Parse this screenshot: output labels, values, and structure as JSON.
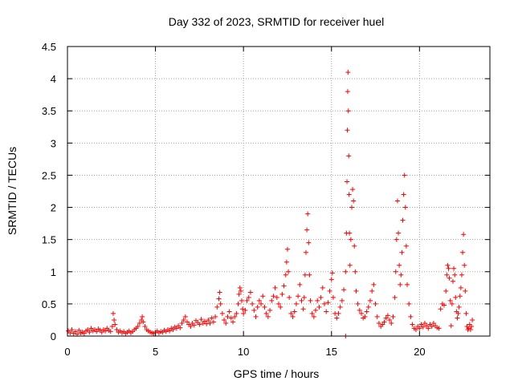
{
  "chart_data": {
    "type": "scatter",
    "title": "Day 332 of 2023, SRMTID for receiver huel",
    "xlabel": "GPS time / hours",
    "ylabel": "SRMTID / TECUs",
    "xlim": [
      0,
      24
    ],
    "ylim": [
      0,
      4.5
    ],
    "x_ticks": [
      0,
      5,
      10,
      15,
      20
    ],
    "x_tick_labels": [
      "0",
      "5",
      "10",
      "15",
      "20"
    ],
    "y_ticks": [
      0,
      0.5,
      1,
      1.5,
      2,
      2.5,
      3,
      3.5,
      4,
      4.5
    ],
    "y_tick_labels": [
      "0",
      "0.5",
      "1",
      "1.5",
      "2",
      "2.5",
      "3",
      "3.5",
      "4",
      "4.5"
    ],
    "grid": true,
    "marker": "+",
    "color": "#ff0000",
    "series": [
      {
        "name": "SRMTID",
        "points": [
          [
            0.05,
            0.08
          ],
          [
            0.15,
            0.05
          ],
          [
            0.25,
            0.1
          ],
          [
            0.35,
            0.04
          ],
          [
            0.45,
            0.07
          ],
          [
            0.55,
            0.03
          ],
          [
            0.65,
            0.09
          ],
          [
            0.75,
            0.05
          ],
          [
            0.85,
            0.06
          ],
          [
            0.95,
            0.04
          ],
          [
            1.05,
            0.08
          ],
          [
            1.15,
            0.1
          ],
          [
            1.25,
            0.06
          ],
          [
            1.35,
            0.12
          ],
          [
            1.45,
            0.08
          ],
          [
            1.55,
            0.1
          ],
          [
            1.65,
            0.07
          ],
          [
            1.75,
            0.11
          ],
          [
            1.85,
            0.09
          ],
          [
            1.95,
            0.06
          ],
          [
            2.05,
            0.1
          ],
          [
            2.15,
            0.08
          ],
          [
            2.25,
            0.12
          ],
          [
            2.35,
            0.09
          ],
          [
            2.45,
            0.07
          ],
          [
            2.55,
            0.15
          ],
          [
            2.6,
            0.35
          ],
          [
            2.65,
            0.25
          ],
          [
            2.7,
            0.18
          ],
          [
            2.8,
            0.1
          ],
          [
            2.9,
            0.06
          ],
          [
            3.0,
            0.08
          ],
          [
            3.1,
            0.05
          ],
          [
            3.2,
            0.07
          ],
          [
            3.3,
            0.04
          ],
          [
            3.4,
            0.06
          ],
          [
            3.5,
            0.08
          ],
          [
            3.6,
            0.05
          ],
          [
            3.7,
            0.07
          ],
          [
            3.8,
            0.1
          ],
          [
            3.9,
            0.12
          ],
          [
            4.0,
            0.15
          ],
          [
            4.1,
            0.2
          ],
          [
            4.2,
            0.25
          ],
          [
            4.25,
            0.3
          ],
          [
            4.3,
            0.22
          ],
          [
            4.4,
            0.15
          ],
          [
            4.5,
            0.1
          ],
          [
            4.6,
            0.08
          ],
          [
            4.7,
            0.06
          ],
          [
            4.8,
            0.05
          ],
          [
            4.9,
            0.04
          ],
          [
            5.0,
            0.06
          ],
          [
            5.1,
            0.08
          ],
          [
            5.2,
            0.05
          ],
          [
            5.3,
            0.07
          ],
          [
            5.4,
            0.06
          ],
          [
            5.5,
            0.09
          ],
          [
            5.6,
            0.07
          ],
          [
            5.7,
            0.1
          ],
          [
            5.8,
            0.08
          ],
          [
            5.9,
            0.12
          ],
          [
            6.0,
            0.1
          ],
          [
            6.1,
            0.14
          ],
          [
            6.2,
            0.12
          ],
          [
            6.3,
            0.16
          ],
          [
            6.4,
            0.13
          ],
          [
            6.5,
            0.2
          ],
          [
            6.6,
            0.25
          ],
          [
            6.7,
            0.3
          ],
          [
            6.8,
            0.22
          ],
          [
            6.9,
            0.18
          ],
          [
            7.0,
            0.15
          ],
          [
            7.1,
            0.2
          ],
          [
            7.2,
            0.17
          ],
          [
            7.3,
            0.24
          ],
          [
            7.4,
            0.21
          ],
          [
            7.5,
            0.18
          ],
          [
            7.6,
            0.26
          ],
          [
            7.7,
            0.2
          ],
          [
            7.8,
            0.23
          ],
          [
            7.9,
            0.19
          ],
          [
            8.0,
            0.25
          ],
          [
            8.1,
            0.2
          ],
          [
            8.2,
            0.28
          ],
          [
            8.3,
            0.22
          ],
          [
            8.4,
            0.3
          ],
          [
            8.5,
            0.45
          ],
          [
            8.6,
            0.58
          ],
          [
            8.65,
            0.68
          ],
          [
            8.7,
            0.5
          ],
          [
            8.8,
            0.35
          ],
          [
            8.9,
            0.25
          ],
          [
            9.0,
            0.2
          ],
          [
            9.1,
            0.3
          ],
          [
            9.2,
            0.38
          ],
          [
            9.3,
            0.28
          ],
          [
            9.4,
            0.22
          ],
          [
            9.5,
            0.3
          ],
          [
            9.6,
            0.35
          ],
          [
            9.7,
            0.5
          ],
          [
            9.75,
            0.65
          ],
          [
            9.8,
            0.75
          ],
          [
            9.85,
            0.7
          ],
          [
            9.9,
            0.55
          ],
          [
            9.95,
            0.42
          ],
          [
            10.0,
            0.35
          ],
          [
            10.1,
            0.4
          ],
          [
            10.2,
            0.55
          ],
          [
            10.3,
            0.6
          ],
          [
            10.4,
            0.68
          ],
          [
            10.5,
            0.5
          ],
          [
            10.6,
            0.4
          ],
          [
            10.7,
            0.3
          ],
          [
            10.8,
            0.45
          ],
          [
            10.9,
            0.55
          ],
          [
            11.0,
            0.5
          ],
          [
            11.1,
            0.62
          ],
          [
            11.2,
            0.45
          ],
          [
            11.3,
            0.35
          ],
          [
            11.4,
            0.3
          ],
          [
            11.5,
            0.4
          ],
          [
            11.6,
            0.55
          ],
          [
            11.7,
            0.62
          ],
          [
            11.8,
            0.75
          ],
          [
            11.9,
            0.6
          ],
          [
            12.0,
            0.5
          ],
          [
            12.1,
            0.45
          ],
          [
            12.2,
            0.65
          ],
          [
            12.3,
            0.78
          ],
          [
            12.4,
            0.95
          ],
          [
            12.45,
            1.15
          ],
          [
            12.5,
            1.35
          ],
          [
            12.55,
            1.0
          ],
          [
            12.6,
            0.6
          ],
          [
            12.7,
            0.35
          ],
          [
            12.8,
            0.3
          ],
          [
            12.9,
            0.38
          ],
          [
            13.0,
            0.5
          ],
          [
            13.1,
            0.62
          ],
          [
            13.2,
            0.8
          ],
          [
            13.3,
            0.55
          ],
          [
            13.4,
            0.42
          ],
          [
            13.45,
            0.6
          ],
          [
            13.5,
            0.95
          ],
          [
            13.55,
            1.3
          ],
          [
            13.6,
            1.65
          ],
          [
            13.65,
            1.9
          ],
          [
            13.7,
            1.45
          ],
          [
            13.75,
            0.95
          ],
          [
            13.8,
            0.55
          ],
          [
            13.9,
            0.35
          ],
          [
            14.0,
            0.3
          ],
          [
            14.1,
            0.4
          ],
          [
            14.2,
            0.55
          ],
          [
            14.3,
            0.45
          ],
          [
            14.4,
            0.6
          ],
          [
            14.5,
            0.75
          ],
          [
            14.6,
            0.5
          ],
          [
            14.7,
            0.38
          ],
          [
            14.8,
            0.52
          ],
          [
            14.9,
            0.7
          ],
          [
            15.0,
            0.88
          ],
          [
            15.05,
            0.98
          ],
          [
            15.1,
            0.6
          ],
          [
            15.2,
            0.35
          ],
          [
            15.3,
            0.28
          ],
          [
            15.4,
            0.35
          ],
          [
            15.5,
            0.45
          ],
          [
            15.6,
            0.55
          ],
          [
            15.7,
            0.72
          ],
          [
            15.8,
            1.0
          ],
          [
            15.85,
            1.6
          ],
          [
            15.88,
            2.4
          ],
          [
            15.9,
            3.2
          ],
          [
            15.92,
            3.8
          ],
          [
            15.94,
            4.1
          ],
          [
            15.96,
            3.5
          ],
          [
            15.98,
            2.8
          ],
          [
            16.0,
            2.2
          ],
          [
            16.02,
            1.6
          ],
          [
            16.05,
            1.1
          ],
          [
            16.1,
            1.5
          ],
          [
            16.15,
            2.0
          ],
          [
            16.2,
            2.28
          ],
          [
            16.25,
            2.1
          ],
          [
            16.3,
            1.4
          ],
          [
            16.35,
            1.0
          ],
          [
            16.4,
            0.7
          ],
          [
            16.5,
            0.5
          ],
          [
            16.6,
            0.4
          ],
          [
            16.7,
            0.35
          ],
          [
            16.8,
            0.28
          ],
          [
            16.9,
            0.3
          ],
          [
            17.0,
            0.38
          ],
          [
            17.1,
            0.45
          ],
          [
            17.2,
            0.55
          ],
          [
            17.3,
            0.7
          ],
          [
            17.4,
            0.8
          ],
          [
            17.5,
            0.5
          ],
          [
            17.6,
            0.3
          ],
          [
            17.7,
            0.2
          ],
          [
            17.8,
            0.15
          ],
          [
            17.9,
            0.18
          ],
          [
            18.0,
            0.22
          ],
          [
            18.1,
            0.28
          ],
          [
            18.2,
            0.32
          ],
          [
            18.3,
            0.25
          ],
          [
            18.4,
            0.2
          ],
          [
            18.5,
            0.3
          ],
          [
            18.6,
            0.6
          ],
          [
            18.65,
            1.0
          ],
          [
            18.7,
            1.5
          ],
          [
            18.75,
            2.1
          ],
          [
            18.8,
            1.6
          ],
          [
            18.85,
            1.1
          ],
          [
            18.9,
            0.8
          ],
          [
            18.95,
            0.95
          ],
          [
            19.0,
            1.3
          ],
          [
            19.05,
            1.8
          ],
          [
            19.1,
            2.2
          ],
          [
            19.15,
            2.5
          ],
          [
            19.2,
            2.0
          ],
          [
            19.25,
            1.4
          ],
          [
            19.3,
            0.8
          ],
          [
            19.4,
            0.5
          ],
          [
            19.5,
            0.3
          ],
          [
            19.6,
            0.18
          ],
          [
            19.7,
            0.12
          ],
          [
            19.8,
            0.1
          ],
          [
            19.9,
            0.15
          ],
          [
            20.0,
            0.12
          ],
          [
            20.1,
            0.18
          ],
          [
            20.2,
            0.14
          ],
          [
            20.3,
            0.2
          ],
          [
            20.4,
            0.16
          ],
          [
            20.5,
            0.12
          ],
          [
            20.6,
            0.18
          ],
          [
            20.7,
            0.15
          ],
          [
            20.8,
            0.2
          ],
          [
            20.9,
            0.16
          ],
          [
            21.0,
            0.13
          ],
          [
            21.1,
            0.12
          ],
          [
            21.2,
            0.42
          ],
          [
            21.3,
            0.5
          ],
          [
            21.4,
            0.48
          ],
          [
            21.5,
            0.7
          ],
          [
            21.55,
            0.95
          ],
          [
            21.6,
            1.1
          ],
          [
            21.65,
            1.05
          ],
          [
            21.7,
            0.9
          ],
          [
            21.75,
            0.55
          ],
          [
            21.8,
            0.16
          ],
          [
            21.85,
            0.5
          ],
          [
            21.9,
            0.85
          ],
          [
            21.95,
            1.05
          ],
          [
            22.0,
            0.95
          ],
          [
            22.05,
            0.6
          ],
          [
            22.1,
            0.38
          ],
          [
            22.15,
            0.28
          ],
          [
            22.2,
            0.35
          ],
          [
            22.25,
            0.45
          ],
          [
            22.3,
            0.62
          ],
          [
            22.35,
            0.75
          ],
          [
            22.4,
            0.95
          ],
          [
            22.45,
            1.3
          ],
          [
            22.5,
            1.58
          ],
          [
            22.55,
            1.1
          ],
          [
            22.6,
            0.7
          ],
          [
            22.65,
            0.35
          ],
          [
            22.7,
            0.15
          ],
          [
            22.75,
            0.1
          ],
          [
            22.8,
            0.12
          ],
          [
            22.85,
            0.18
          ],
          [
            22.9,
            0.1
          ],
          [
            22.95,
            0.15
          ],
          [
            23.0,
            0.25
          ],
          [
            15.8,
            0.0
          ]
        ]
      }
    ]
  }
}
